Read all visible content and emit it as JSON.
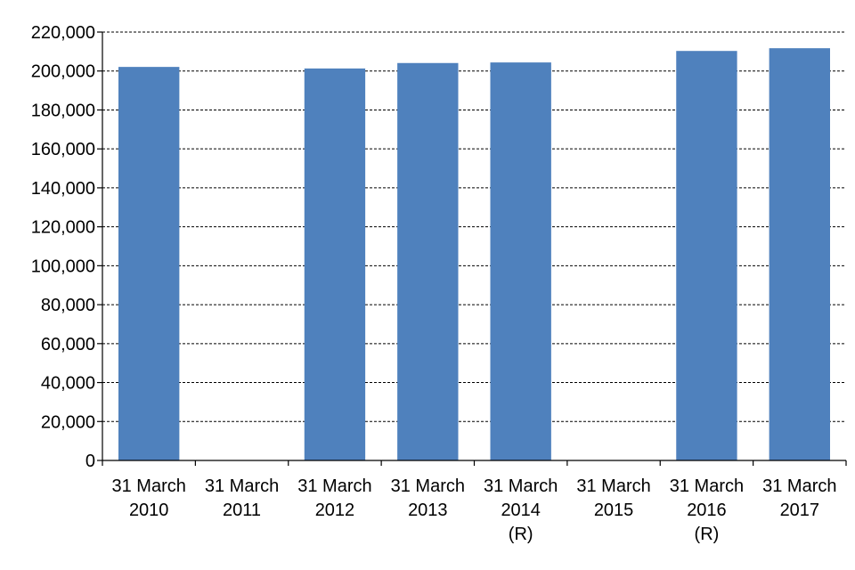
{
  "chart_data": {
    "type": "bar",
    "title": "",
    "xlabel": "",
    "ylabel": "",
    "categories": [
      [
        "31 March",
        "2010"
      ],
      [
        "31 March",
        "2011"
      ],
      [
        "31 March",
        "2012"
      ],
      [
        "31 March",
        "2013"
      ],
      [
        "31 March",
        "2014",
        "(R)"
      ],
      [
        "31 March",
        "2015"
      ],
      [
        "31 March",
        "2016",
        "(R)"
      ],
      [
        "31 March",
        "2017"
      ]
    ],
    "values": [
      202100,
      null,
      201300,
      204100,
      204400,
      null,
      210300,
      211700
    ],
    "ylim": [
      0,
      220000
    ],
    "yticks": [
      0,
      20000,
      40000,
      60000,
      80000,
      100000,
      120000,
      140000,
      160000,
      180000,
      200000,
      220000
    ],
    "ytick_labels": [
      "0",
      "20,000",
      "40,000",
      "60,000",
      "80,000",
      "100,000",
      "120,000",
      "140,000",
      "160,000",
      "180,000",
      "200,000",
      "220,000"
    ],
    "grid": "horizontal-dashed",
    "legend": "none",
    "bar_color": "#4F81BD"
  }
}
